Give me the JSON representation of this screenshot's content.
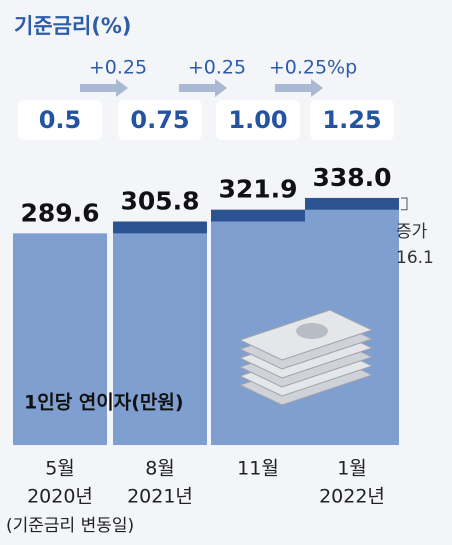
{
  "chart_data": {
    "type": "bar",
    "rate_title": "기준금리(%)",
    "rate_labels": [
      "0.5",
      "0.75",
      "1.00",
      "1.25"
    ],
    "rate_changes": [
      "+0.25",
      "+0.25",
      "+0.25%p"
    ],
    "categories": [
      "5월",
      "8월",
      "11월",
      "1월"
    ],
    "category_years": [
      "2020년",
      "2021년",
      null,
      "2022년"
    ],
    "footnote": "(기준금리 변동일)",
    "series_label": "1인당 연이자(만원)",
    "values": [
      289.6,
      305.8,
      321.9,
      338.0
    ],
    "value_labels": [
      "289.6",
      "305.8",
      "321.9",
      "338.0"
    ],
    "color": "#7f9fd0",
    "increase_color": "#2c5391",
    "annotation": {
      "text": "증가",
      "value": 16.1
    },
    "ylim": [
      0,
      340
    ]
  }
}
